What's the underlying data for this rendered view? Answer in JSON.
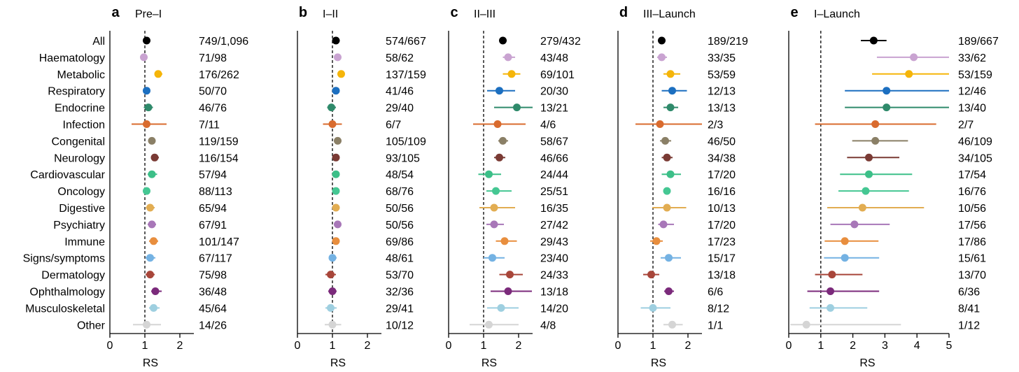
{
  "chart_data": {
    "type": "forest",
    "categories": [
      "All",
      "Haematology",
      "Metabolic",
      "Respiratory",
      "Endocrine",
      "Infection",
      "Congenital",
      "Neurology",
      "Cardiovascular",
      "Oncology",
      "Digestive",
      "Psychiatry",
      "Immune",
      "Signs/symptoms",
      "Dermatology",
      "Ophthalmology",
      "Musculoskeletal",
      "Other"
    ],
    "colors": [
      "#000000",
      "#c9a3d1",
      "#f5b50a",
      "#1c6fc0",
      "#2f8a6b",
      "#d96b2e",
      "#8a7f66",
      "#7a3a34",
      "#3cbf88",
      "#45c793",
      "#e2ad52",
      "#a877b8",
      "#e88e3e",
      "#74b2e3",
      "#a8463a",
      "#7b2a7b",
      "#9ecfe0",
      "#d5d5d5"
    ],
    "panels": [
      {
        "letter": "a",
        "title": "Pre–I",
        "xlabel": "RS",
        "xlim": [
          0,
          2.4
        ],
        "ticks": [
          0,
          1,
          2
        ],
        "points": [
          1.05,
          0.97,
          1.38,
          1.05,
          1.1,
          1.05,
          1.2,
          1.28,
          1.2,
          1.05,
          1.15,
          1.2,
          1.25,
          1.15,
          1.15,
          1.3,
          1.25,
          1.05
        ],
        "lo": [
          1.0,
          0.9,
          1.28,
          0.98,
          0.97,
          0.62,
          1.12,
          1.18,
          1.08,
          1.0,
          1.03,
          1.08,
          1.12,
          1.02,
          1.02,
          1.18,
          1.12,
          0.66
        ],
        "hi": [
          1.1,
          1.05,
          1.5,
          1.15,
          1.23,
          1.62,
          1.3,
          1.4,
          1.35,
          1.1,
          1.28,
          1.32,
          1.38,
          1.3,
          1.28,
          1.48,
          1.42,
          1.46
        ],
        "counts": [
          "749/1,096",
          "71/98",
          "176/262",
          "50/70",
          "46/76",
          "7/11",
          "119/159",
          "116/154",
          "57/94",
          "88/113",
          "65/94",
          "67/91",
          "101/147",
          "67/117",
          "75/98",
          "36/48",
          "45/64",
          "14/26"
        ]
      },
      {
        "letter": "b",
        "title": "I–II",
        "xlabel": "RS",
        "xlim": [
          0,
          2.4
        ],
        "ticks": [
          0,
          1,
          2
        ],
        "points": [
          1.1,
          1.15,
          1.25,
          1.1,
          0.97,
          1.0,
          1.15,
          1.1,
          1.1,
          1.1,
          1.1,
          1.15,
          1.1,
          1.0,
          0.95,
          1.0,
          0.95,
          1.0
        ],
        "lo": [
          1.05,
          1.08,
          1.15,
          1.02,
          0.85,
          0.73,
          1.08,
          1.02,
          1.03,
          1.04,
          1.02,
          1.06,
          1.02,
          0.9,
          0.8,
          0.88,
          0.8,
          0.78
        ],
        "hi": [
          1.15,
          1.22,
          1.35,
          1.18,
          1.1,
          1.27,
          1.22,
          1.18,
          1.17,
          1.16,
          1.18,
          1.24,
          1.18,
          1.12,
          1.1,
          1.12,
          1.12,
          1.25
        ],
        "counts": [
          "574/667",
          "58/62",
          "137/159",
          "41/46",
          "29/40",
          "6/7",
          "105/109",
          "93/105",
          "48/54",
          "68/76",
          "50/56",
          "50/56",
          "69/86",
          "48/61",
          "53/70",
          "32/36",
          "29/41",
          "10/12"
        ]
      },
      {
        "letter": "c",
        "title": "II–III",
        "xlabel": "RS",
        "xlim": [
          0,
          2.4
        ],
        "ticks": [
          0,
          1,
          2
        ],
        "points": [
          1.55,
          1.7,
          1.8,
          1.45,
          1.95,
          1.4,
          1.55,
          1.45,
          1.15,
          1.35,
          1.3,
          1.3,
          1.6,
          1.25,
          1.75,
          1.7,
          1.5,
          1.15
        ],
        "lo": [
          1.45,
          1.55,
          1.55,
          1.1,
          1.3,
          0.7,
          1.42,
          1.3,
          0.85,
          1.08,
          0.88,
          1.08,
          1.35,
          1.0,
          1.45,
          1.2,
          1.1,
          0.6
        ],
        "hi": [
          1.65,
          1.9,
          2.05,
          1.9,
          2.5,
          2.2,
          1.7,
          1.62,
          1.5,
          1.8,
          1.9,
          1.58,
          1.95,
          1.6,
          2.12,
          2.38,
          2.0,
          2.0
        ],
        "counts": [
          "279/432",
          "43/48",
          "69/101",
          "20/30",
          "13/21",
          "4/6",
          "58/67",
          "46/66",
          "24/44",
          "25/51",
          "16/35",
          "27/42",
          "29/43",
          "23/40",
          "24/33",
          "13/18",
          "14/20",
          "4/8"
        ]
      },
      {
        "letter": "d",
        "title": "III–Launch",
        "xlabel": "RS",
        "xlim": [
          0,
          2.4
        ],
        "ticks": [
          0,
          1,
          2
        ],
        "points": [
          1.25,
          1.25,
          1.5,
          1.55,
          1.5,
          1.2,
          1.35,
          1.4,
          1.5,
          1.4,
          1.4,
          1.3,
          1.1,
          1.45,
          0.95,
          1.45,
          1.0,
          1.55
        ],
        "lo": [
          1.2,
          1.12,
          1.3,
          1.25,
          1.3,
          0.5,
          1.2,
          1.25,
          1.25,
          1.35,
          0.98,
          1.15,
          0.92,
          1.22,
          0.72,
          1.32,
          0.65,
          1.3
        ],
        "hi": [
          1.3,
          1.4,
          1.78,
          1.97,
          1.72,
          2.45,
          1.52,
          1.56,
          1.8,
          1.45,
          1.95,
          1.6,
          1.28,
          1.8,
          1.18,
          1.6,
          1.5,
          1.85
        ],
        "counts": [
          "189/219",
          "33/35",
          "53/59",
          "12/13",
          "13/13",
          "2/3",
          "46/50",
          "34/38",
          "17/20",
          "16/16",
          "10/13",
          "17/20",
          "17/23",
          "15/17",
          "13/18",
          "6/6",
          "8/12",
          "1/1"
        ]
      },
      {
        "letter": "e",
        "title": "I–Launch",
        "xlabel": "RS",
        "xlim": [
          0,
          5
        ],
        "ticks": [
          0,
          1,
          2,
          3,
          4,
          5
        ],
        "points": [
          2.65,
          3.9,
          3.75,
          3.05,
          3.05,
          2.7,
          2.7,
          2.5,
          2.5,
          2.4,
          2.3,
          2.05,
          1.75,
          1.75,
          1.35,
          1.3,
          1.3,
          0.55
        ],
        "lo": [
          2.25,
          2.75,
          2.6,
          1.75,
          1.75,
          0.82,
          1.98,
          1.82,
          1.6,
          1.55,
          1.2,
          1.3,
          1.12,
          1.1,
          0.82,
          0.58,
          0.65,
          0.05
        ],
        "hi": [
          3.05,
          5.0,
          5.0,
          5.0,
          5.0,
          4.6,
          3.72,
          3.45,
          3.85,
          3.75,
          4.22,
          3.15,
          2.8,
          2.82,
          2.3,
          2.82,
          2.45,
          3.5
        ],
        "counts": [
          "189/667",
          "33/62",
          "53/159",
          "12/46",
          "13/40",
          "2/7",
          "46/109",
          "34/105",
          "17/54",
          "16/76",
          "10/56",
          "17/56",
          "17/86",
          "15/61",
          "13/70",
          "6/36",
          "8/41",
          "1/12"
        ]
      }
    ]
  }
}
